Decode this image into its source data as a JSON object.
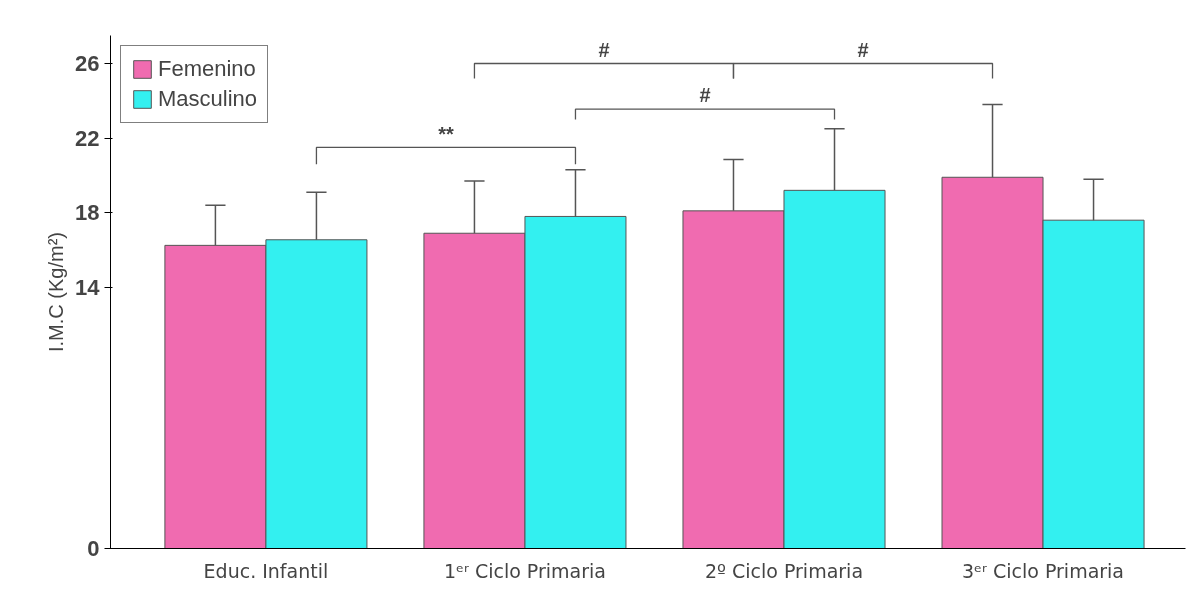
{
  "chart_data": {
    "type": "bar",
    "ylabel": "I.M.C (Kg/m²)",
    "categories": [
      "Educ. Infantil",
      "1ᵉʳ Ciclo Primaria",
      "2º Ciclo Primaria",
      "3ᵉʳ Ciclo Primaria"
    ],
    "series": [
      {
        "name": "Femenino",
        "color": "#f06bb0",
        "values": [
          16.25,
          16.9,
          18.1,
          19.9
        ],
        "errors": [
          [
            16.25,
            18.4
          ],
          [
            16.9,
            19.7
          ],
          [
            18.1,
            20.85
          ],
          [
            19.9,
            23.8
          ]
        ]
      },
      {
        "name": "Masculino",
        "color": "#33f0f0",
        "values": [
          16.55,
          17.8,
          19.2,
          17.6
        ],
        "errors": [
          [
            16.55,
            19.1
          ],
          [
            17.8,
            20.3
          ],
          [
            19.2,
            22.5
          ],
          [
            17.6,
            19.8
          ]
        ]
      }
    ],
    "ylim": [
      0,
      27.5
    ],
    "yticks": [
      0,
      14,
      18,
      22,
      26
    ],
    "legend": "top left",
    "grid": false,
    "annotations": [
      "**",
      "#",
      "#",
      "#"
    ]
  }
}
